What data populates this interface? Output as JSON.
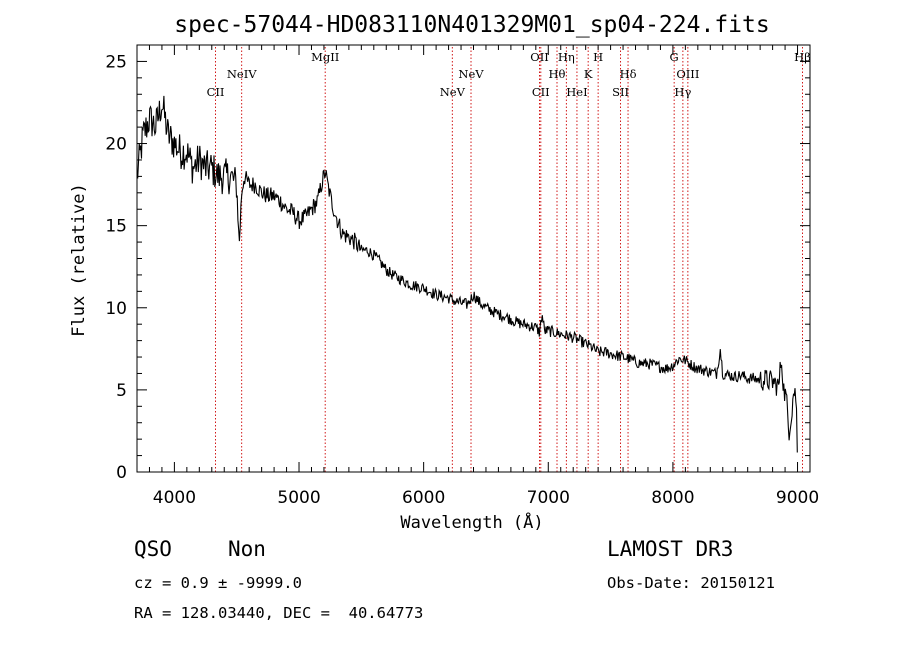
{
  "chart_data": {
    "type": "line",
    "title": "spec-57044-HD083110N401329M01_sp04-224.fits",
    "xlabel": "Wavelength (Å)",
    "ylabel": "Flux (relative)",
    "xlim": [
      3700,
      9100
    ],
    "ylim": [
      0,
      26
    ],
    "xticks": [
      4000,
      5000,
      6000,
      7000,
      8000,
      9000
    ],
    "yticks": [
      0,
      5,
      10,
      15,
      20,
      25
    ],
    "grid": false,
    "series": [
      {
        "x": [
          3700,
          3750,
          3800,
          3850,
          3900,
          3950,
          4000,
          4050,
          4100,
          4150,
          4200,
          4250,
          4300,
          4350,
          4400,
          4450,
          4500,
          4520,
          4540,
          4560,
          4600,
          4650,
          4700,
          4750,
          4800,
          4850,
          4900,
          4950,
          5000,
          5050,
          5100,
          5150,
          5180,
          5210,
          5230,
          5260,
          5300,
          5350,
          5400,
          5450,
          5500,
          5550,
          5600,
          5650,
          5700,
          5750,
          5800,
          5850,
          5900,
          5950,
          6000,
          6050,
          6100,
          6150,
          6200,
          6250,
          6300,
          6350,
          6400,
          6450,
          6500,
          6550,
          6600,
          6650,
          6700,
          6750,
          6800,
          6850,
          6900,
          6930,
          6950,
          6970,
          7000,
          7050,
          7100,
          7150,
          7200,
          7250,
          7300,
          7350,
          7400,
          7450,
          7500,
          7550,
          7600,
          7650,
          7700,
          7750,
          7800,
          7850,
          7900,
          7950,
          8000,
          8050,
          8100,
          8150,
          8200,
          8250,
          8300,
          8350,
          8380,
          8400,
          8450,
          8500,
          8550,
          8600,
          8650,
          8700,
          8750,
          8800,
          8850,
          8870,
          8890,
          8910,
          8930,
          8950,
          8970,
          8990,
          9000
        ],
        "y": [
          18.0,
          20.5,
          21.5,
          21.0,
          22.5,
          20.5,
          20.0,
          19.5,
          19.5,
          18.5,
          19.0,
          18.5,
          18.5,
          18.0,
          18.0,
          18.0,
          17.5,
          13.8,
          17.0,
          18.0,
          17.5,
          17.5,
          17.0,
          16.8,
          16.8,
          16.5,
          16.0,
          15.8,
          15.3,
          15.5,
          16.0,
          16.5,
          17.5,
          18.3,
          17.5,
          16.5,
          15.5,
          14.5,
          14.3,
          14.0,
          13.5,
          13.5,
          13.2,
          12.8,
          12.3,
          12.0,
          11.8,
          11.6,
          11.4,
          11.3,
          11.2,
          11.0,
          10.8,
          10.7,
          10.6,
          10.4,
          10.3,
          10.2,
          10.8,
          10.3,
          10.0,
          9.8,
          9.6,
          9.5,
          9.3,
          9.1,
          9.0,
          8.9,
          8.8,
          8.5,
          9.6,
          8.6,
          8.6,
          8.5,
          8.4,
          8.3,
          8.2,
          8.0,
          7.8,
          7.6,
          7.3,
          7.3,
          7.2,
          7.1,
          7.0,
          6.9,
          6.7,
          6.6,
          6.6,
          6.5,
          6.4,
          6.3,
          6.5,
          6.9,
          6.8,
          6.5,
          6.3,
          6.2,
          6.1,
          6.0,
          7.5,
          6.0,
          5.9,
          5.8,
          5.9,
          5.7,
          5.7,
          5.6,
          5.6,
          5.5,
          5.2,
          7.0,
          5.0,
          4.5,
          2.5,
          3.5,
          5.0,
          4.5,
          0.2
        ]
      }
    ],
    "lines": [
      {
        "name": "CII",
        "x": 4330,
        "row": 2
      },
      {
        "name": "NeIV",
        "x": 4540,
        "row": 1
      },
      {
        "name": "MgII",
        "x": 5210,
        "row": 0
      },
      {
        "name": "NeV",
        "x": 6230,
        "row": 2
      },
      {
        "name": "NeV",
        "x": 6380,
        "row": 1
      },
      {
        "name": "OII",
        "x": 6930,
        "row": 0
      },
      {
        "name": "CII",
        "x": 6940,
        "row": 2
      },
      {
        "name": "Hθ",
        "x": 7070,
        "row": 1
      },
      {
        "name": "Hη",
        "x": 7145,
        "row": 0
      },
      {
        "name": "HeI",
        "x": 7230,
        "row": 2
      },
      {
        "name": "K",
        "x": 7320,
        "row": 1
      },
      {
        "name": "H",
        "x": 7400,
        "row": 0
      },
      {
        "name": "SII",
        "x": 7580,
        "row": 2
      },
      {
        "name": "Hδ",
        "x": 7640,
        "row": 1
      },
      {
        "name": "G",
        "x": 8010,
        "row": 0
      },
      {
        "name": "Hγ",
        "x": 8080,
        "row": 2
      },
      {
        "name": "OIII",
        "x": 8120,
        "row": 1
      },
      {
        "name": "Hβ",
        "x": 9040,
        "row": 0
      }
    ]
  },
  "info": {
    "class": "QSO",
    "subclass": "Non",
    "survey": "LAMOST DR3",
    "cz": "cz = 0.9 ± -9999.0",
    "obs_date": "Obs-Date: 20150121",
    "coords": "RA = 128.03440, DEC =  40.64773"
  },
  "colors": {
    "spectrum": "#000000",
    "line_markers": "#cc0000",
    "background": "#ffffff"
  }
}
